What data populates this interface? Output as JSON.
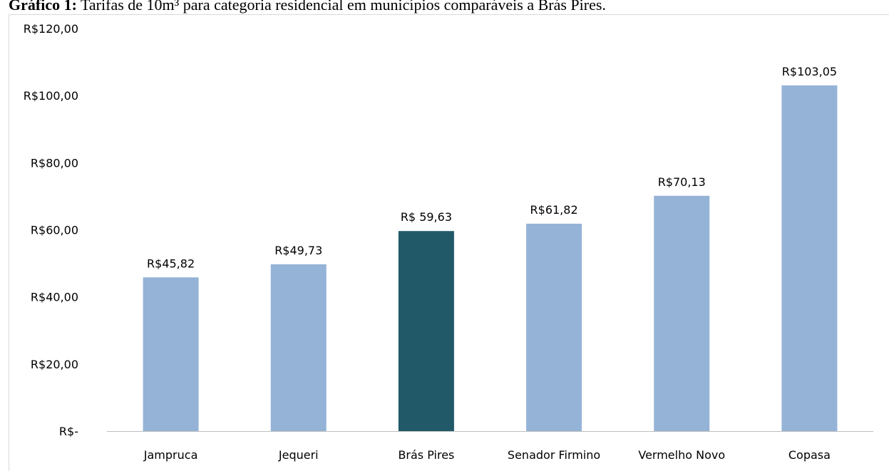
{
  "chart_data": {
    "type": "bar",
    "title_prefix": "Gráfico 1:",
    "title": "Tarifas de 10m³ para categoria residencial em municípios comparáveis a Brás Pires.",
    "categories": [
      "Jampruca",
      "Jequeri",
      "Brás Pires",
      "Senador Firmino",
      "Vermelho Novo",
      "Copasa"
    ],
    "values": [
      45.82,
      49.73,
      59.63,
      61.82,
      70.13,
      103.05
    ],
    "value_labels": [
      "R$45,82",
      "R$49,73",
      "R$ 59,63",
      "R$61,82",
      "R$70,13",
      "R$103,05"
    ],
    "colors": [
      "#95b3d7",
      "#95b3d7",
      "#215968",
      "#95b3d7",
      "#95b3d7",
      "#95b3d7"
    ],
    "ylim": [
      0,
      120
    ],
    "yticks": [
      {
        "value": 0,
        "label": "R$-"
      },
      {
        "value": 20,
        "label": "R$20,00"
      },
      {
        "value": 40,
        "label": "R$40,00"
      },
      {
        "value": 60,
        "label": "R$60,00"
      },
      {
        "value": 80,
        "label": "R$80,00"
      },
      {
        "value": 100,
        "label": "R$100,00"
      },
      {
        "value": 120,
        "label": "R$120,00"
      }
    ],
    "grid": false
  }
}
